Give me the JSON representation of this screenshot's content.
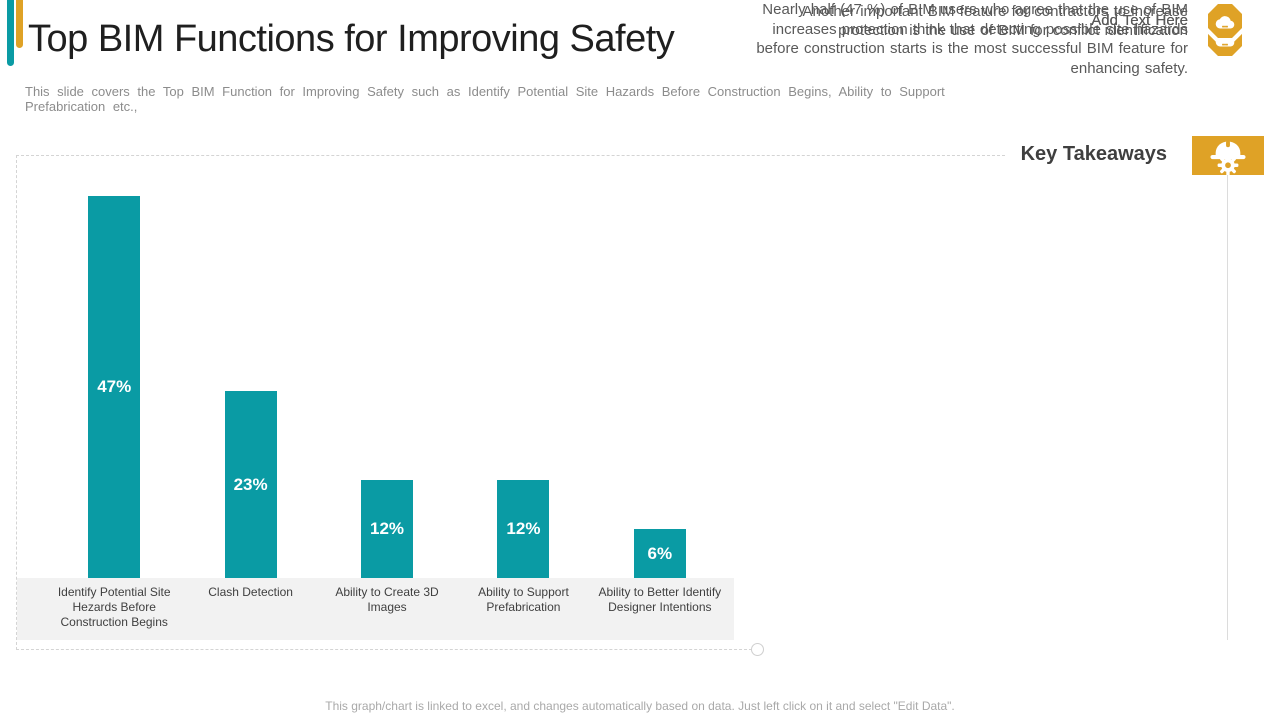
{
  "colors": {
    "teal": "#0a9ba4",
    "gold": "#dfa226",
    "strip": "#f2f2f2"
  },
  "header": {
    "title": "Top BIM Functions for Improving Safety",
    "subtitle": "This slide covers the Top BIM Function for Improving  Safety such as Identify Potential Site Hazards Before Construction Begins, Ability to Support Prefabrication  etc.,"
  },
  "chart_data": {
    "type": "bar",
    "categories": [
      "Identify Potential Site Hezards Before Construction Begins",
      "Clash Detection",
      "Ability to Create 3D Images",
      "Ability to Support Prefabrication",
      "Ability to Better Identify Designer Intentions"
    ],
    "values": [
      47,
      23,
      12,
      12,
      6
    ],
    "value_labels": [
      "47%",
      "23%",
      "12%",
      "12%",
      "6%"
    ],
    "bar_color": "#0a9ba4",
    "title": "",
    "xlabel": "",
    "ylabel": "",
    "ylim": [
      0,
      50
    ],
    "grid": false,
    "legend": false,
    "label_position": "center-inside"
  },
  "takeaways": {
    "heading": "Key Takeaways",
    "header_icon": "safety-helmet-icon",
    "items": [
      {
        "text": "Nearly half (47 %) of BIM users who agree that the use of BIM increases protection think that detecting possible site hazards before construction starts is the most successful BIM feature for enhancing safety.",
        "icon": "cloud-icon"
      },
      {
        "text": "Another important BIM feature for contractors to increase protection is the use of BIM for conflict identification",
        "icon": "cloud-icon"
      },
      {
        "text": "Add Text Here",
        "icon": "cloud-icon"
      },
      {
        "text": "Add Text Here",
        "icon": "cloud-icon"
      },
      {
        "text": "Add Text Here",
        "icon": "cloud-icon"
      }
    ]
  },
  "footer": {
    "note": "This graph/chart is linked to excel,  and changes automatically based on data. Just left click on it and select \"Edit Data\"."
  }
}
